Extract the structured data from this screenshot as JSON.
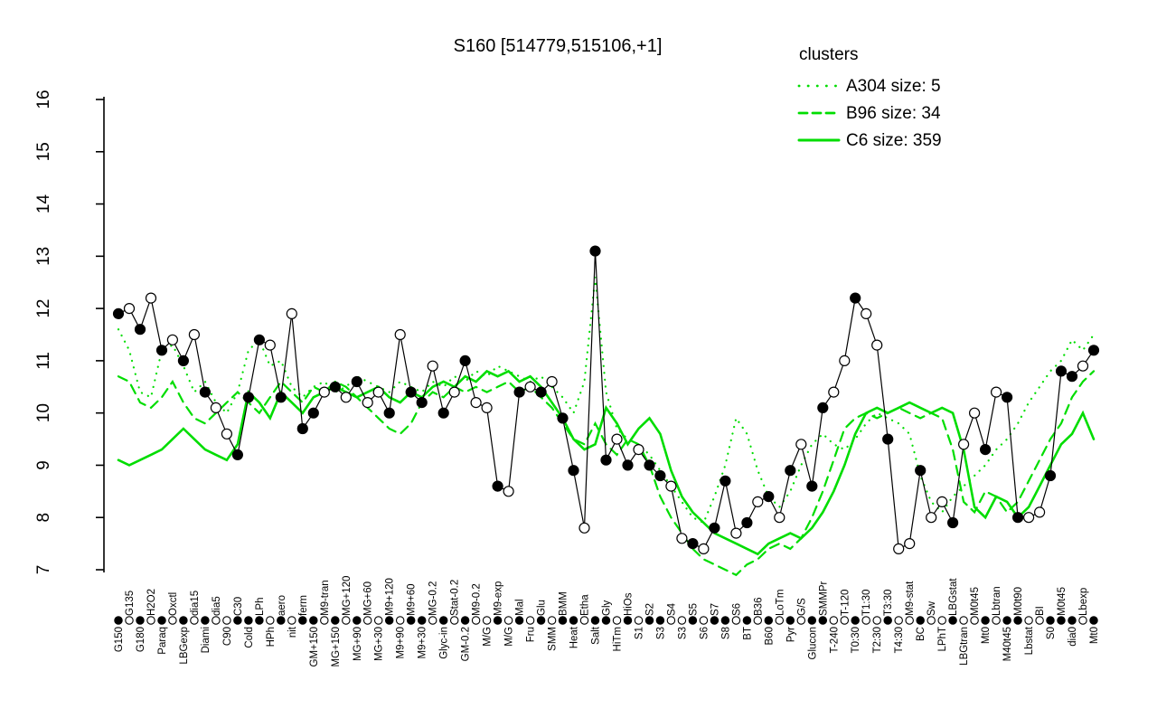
{
  "colors": {
    "cluster_green": "#00dd00",
    "series_black": "#000000",
    "background": "#ffffff"
  },
  "legend": {
    "title": "clusters",
    "entries": [
      {
        "label": "A304 size: 5",
        "style": "dotted"
      },
      {
        "label": "B96 size: 34",
        "style": "dashed"
      },
      {
        "label": "C6 size: 359",
        "style": "solid"
      }
    ]
  },
  "chart_data": {
    "type": "line",
    "title": "S160 [514779,515106,+1]",
    "xlabel": "",
    "ylabel": "",
    "ylim": [
      7,
      16
    ],
    "yticks": [
      7,
      8,
      9,
      10,
      11,
      12,
      13,
      14,
      15,
      16
    ],
    "grid": false,
    "legend_position": "top-right",
    "categories": [
      "G150",
      "G135",
      "G180",
      "H2O2",
      "Paraq",
      "Oxctl",
      "LBGexp",
      "dia15",
      "Diami",
      "dia5",
      "C90",
      "C30",
      "Cold",
      "LPh",
      "HPh",
      "aero",
      "nit",
      "ferm",
      "GM+150",
      "M9-tran",
      "MG+150",
      "MG+120",
      "MG+90",
      "MG+60",
      "MG+30",
      "M9+120",
      "M9+90",
      "M9+60",
      "M9+30",
      "MG-0.2",
      "Glyc-in",
      "Stat-0.2",
      "GM-0.2",
      "M9-0.2",
      "M/G",
      "M9-exp",
      "M/G",
      "Mal",
      "Fru",
      "Glu",
      "SMM",
      "BMM",
      "Heat",
      "Etha",
      "Salt",
      "Gly",
      "HiTm",
      "HiOs",
      "S1",
      "S2",
      "S3",
      "S4",
      "S3",
      "S5",
      "S6",
      "S7",
      "S8",
      "S6",
      "BT",
      "B36",
      "B60",
      "LoTm",
      "Pyr",
      "G/S",
      "Glucon",
      "SMMPr",
      "T-240",
      "T-120",
      "T0:30",
      "T1:30",
      "T2:30",
      "T3:30",
      "T4:30",
      "M9-stat",
      "BC",
      "Sw",
      "LPhT",
      "LBGstat",
      "LBGtran",
      "M0t45",
      "Mt0",
      "Lbtran",
      "M40t45",
      "M0t90",
      "Lbstat",
      "BI",
      "S0",
      "M0t45",
      "dia0",
      "Lbexp",
      "Mt0"
    ],
    "series": [
      {
        "name": "S160",
        "role": "gene-profile",
        "color": "#000000",
        "marker": "circle",
        "values": [
          11.9,
          12.0,
          11.6,
          12.2,
          11.2,
          11.4,
          11.0,
          11.5,
          10.4,
          10.1,
          9.6,
          9.2,
          10.3,
          11.4,
          11.3,
          10.3,
          11.9,
          9.7,
          10.0,
          10.4,
          10.5,
          10.3,
          10.6,
          10.2,
          10.4,
          10.0,
          11.5,
          10.4,
          10.2,
          10.9,
          10.0,
          10.4,
          11.0,
          10.2,
          10.1,
          8.6,
          8.5,
          10.4,
          10.5,
          10.4,
          10.6,
          9.9,
          8.9,
          7.8,
          13.1,
          9.1,
          9.5,
          9.0,
          9.3,
          9.0,
          8.8,
          8.6,
          7.6,
          7.5,
          7.4,
          7.8,
          8.7,
          7.7,
          7.9,
          8.3,
          8.4,
          8.0,
          8.9,
          9.4,
          8.6,
          10.1,
          10.4,
          11.0,
          12.2,
          11.9,
          11.3,
          9.5,
          7.4,
          7.5,
          8.9,
          8.0,
          8.3,
          7.9,
          9.4,
          10.0,
          9.3,
          10.4,
          10.3,
          8.0,
          8.0,
          8.1,
          8.8,
          10.8,
          10.7,
          10.9,
          11.2
        ],
        "filled": [
          1,
          0,
          1,
          0,
          1,
          0,
          1,
          0,
          1,
          0,
          0,
          1,
          1,
          1,
          0,
          1,
          0,
          1,
          1,
          0,
          1,
          0,
          1,
          0,
          0,
          1,
          0,
          1,
          1,
          0,
          1,
          0,
          1,
          0,
          0,
          1,
          0,
          1,
          0,
          1,
          0,
          1,
          1,
          0,
          1,
          1,
          0,
          1,
          0,
          1,
          1,
          0,
          0,
          1,
          0,
          1,
          1,
          0,
          1,
          0,
          1,
          0,
          1,
          0,
          1,
          1,
          0,
          0,
          1,
          0,
          0,
          1,
          0,
          0,
          1,
          0,
          0,
          1,
          0,
          0,
          1,
          0,
          1,
          1,
          0,
          0,
          1,
          1,
          1,
          0,
          1
        ]
      },
      {
        "name": "A304",
        "cluster_size": 5,
        "style": "dotted",
        "color": "#00dd00",
        "values": [
          11.6,
          11.2,
          10.4,
          10.3,
          11.2,
          11.3,
          10.9,
          10.4,
          10.6,
          10.2,
          10.0,
          10.4,
          11.2,
          11.4,
          10.9,
          11.0,
          10.5,
          10.3,
          10.5,
          10.6,
          10.4,
          10.5,
          10.7,
          10.6,
          10.5,
          10.4,
          10.6,
          10.5,
          10.4,
          10.6,
          10.5,
          10.7,
          10.6,
          10.8,
          10.7,
          10.9,
          10.8,
          10.7,
          10.6,
          10.7,
          10.5,
          10.3,
          10.0,
          10.6,
          12.6,
          10.4,
          9.7,
          9.5,
          9.4,
          9.2,
          8.9,
          8.6,
          8.3,
          8.0,
          7.9,
          8.4,
          9.0,
          9.9,
          9.6,
          8.9,
          8.4,
          8.2,
          8.5,
          9.0,
          9.4,
          9.6,
          9.4,
          9.3,
          9.5,
          9.8,
          10.0,
          9.9,
          9.8,
          9.6,
          8.8,
          8.3,
          8.1,
          8.4,
          8.6,
          8.8,
          9.0,
          9.3,
          9.5,
          9.8,
          10.2,
          10.5,
          10.8,
          11.0,
          11.4,
          11.2,
          11.5
        ]
      },
      {
        "name": "B96",
        "cluster_size": 34,
        "style": "dashed",
        "color": "#00dd00",
        "values": [
          10.7,
          10.6,
          10.2,
          10.1,
          10.3,
          10.6,
          10.2,
          9.9,
          9.8,
          10.0,
          10.2,
          10.4,
          10.2,
          10.0,
          10.3,
          10.6,
          10.4,
          10.2,
          10.5,
          10.4,
          10.6,
          10.5,
          10.3,
          10.1,
          9.9,
          9.7,
          9.6,
          9.8,
          10.2,
          10.4,
          10.3,
          10.5,
          10.4,
          10.5,
          10.4,
          10.5,
          10.6,
          10.4,
          10.5,
          10.3,
          10.1,
          9.8,
          9.5,
          9.4,
          9.8,
          9.4,
          9.2,
          9.5,
          9.4,
          9.0,
          8.4,
          8.0,
          7.7,
          7.4,
          7.2,
          7.1,
          7.0,
          6.9,
          7.1,
          7.2,
          7.4,
          7.5,
          7.4,
          7.6,
          8.0,
          8.5,
          9.1,
          9.7,
          9.9,
          10.0,
          9.9,
          10.0,
          10.1,
          10.0,
          9.9,
          10.0,
          9.9,
          9.3,
          8.3,
          8.1,
          8.5,
          8.4,
          8.1,
          8.3,
          8.7,
          9.1,
          9.5,
          9.8,
          10.3,
          10.6,
          10.8
        ]
      },
      {
        "name": "C6",
        "cluster_size": 359,
        "style": "solid",
        "color": "#00dd00",
        "values": [
          9.1,
          9.0,
          9.1,
          9.2,
          9.3,
          9.5,
          9.7,
          9.5,
          9.3,
          9.2,
          9.1,
          9.4,
          10.4,
          10.2,
          9.9,
          10.4,
          10.2,
          10.0,
          10.3,
          10.4,
          10.5,
          10.4,
          10.3,
          10.4,
          10.5,
          10.3,
          10.2,
          10.4,
          10.3,
          10.5,
          10.6,
          10.5,
          10.7,
          10.6,
          10.8,
          10.7,
          10.8,
          10.6,
          10.7,
          10.5,
          10.2,
          9.9,
          9.5,
          9.3,
          9.4,
          10.1,
          9.8,
          9.4,
          9.7,
          9.9,
          9.6,
          8.9,
          8.4,
          8.1,
          7.9,
          7.7,
          7.6,
          7.5,
          7.4,
          7.3,
          7.5,
          7.6,
          7.7,
          7.6,
          7.8,
          8.1,
          8.5,
          9.0,
          9.6,
          10.0,
          10.1,
          10.0,
          10.1,
          10.2,
          10.1,
          10.0,
          10.1,
          10.0,
          9.3,
          8.2,
          8.0,
          8.4,
          8.3,
          8.0,
          8.2,
          8.6,
          9.0,
          9.4,
          9.6,
          10.0,
          9.5
        ]
      }
    ]
  }
}
